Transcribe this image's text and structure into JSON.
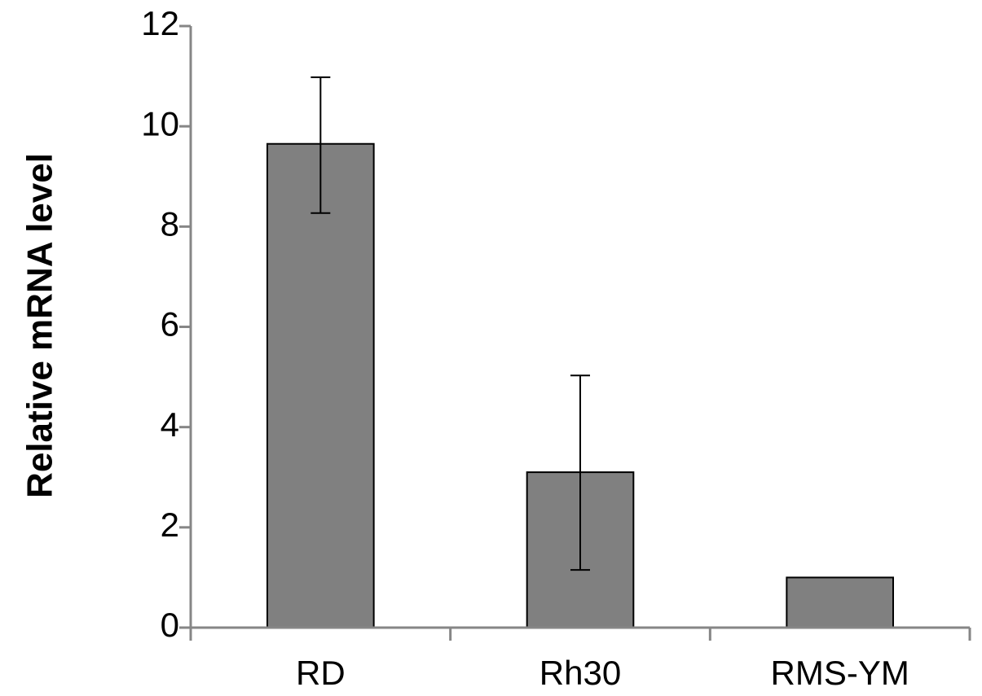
{
  "chart_data": {
    "type": "bar",
    "title": "",
    "xlabel": "",
    "ylabel": "Relative mRNA level",
    "categories": [
      "RD",
      "Rh30",
      "RMS-YM"
    ],
    "values": [
      9.65,
      3.1,
      1.0
    ],
    "error_plus": [
      1.33,
      1.93,
      0
    ],
    "error_minus": [
      1.38,
      1.95,
      0
    ],
    "ylim": [
      0,
      12
    ],
    "yticks": [
      0,
      2,
      4,
      6,
      8,
      10,
      12
    ],
    "ytick_labels": [
      "0",
      "2",
      "4",
      "6",
      "8",
      "10",
      "12"
    ],
    "grid": false,
    "legend": "none",
    "colors": {
      "bar_fill": "#808080",
      "bar_stroke": "#000000",
      "axis": "#868686"
    }
  }
}
